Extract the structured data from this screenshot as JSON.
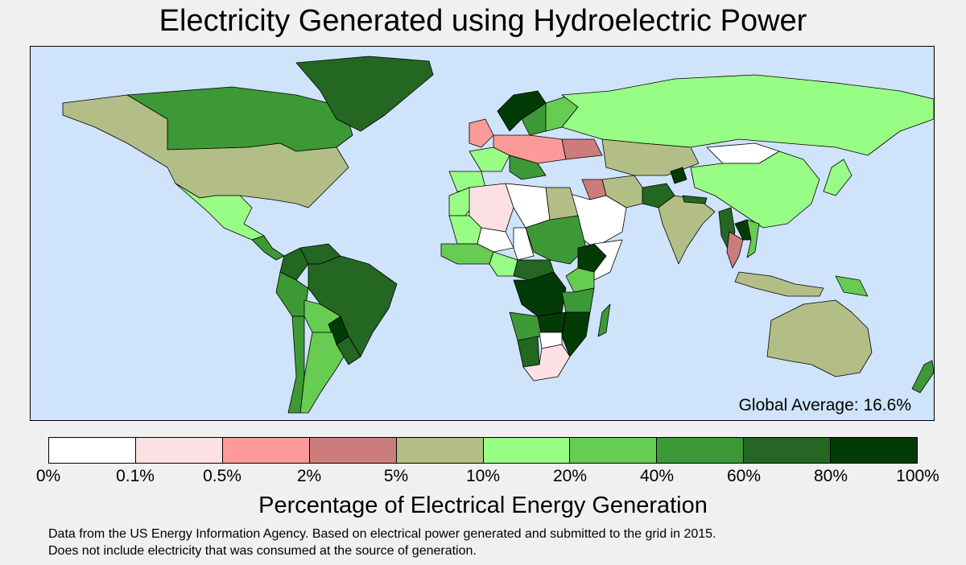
{
  "title": "Electricity Generated using Hydroelectric Power",
  "global_average": "Global Average: 16.6%",
  "legend": {
    "title": "Percentage of Electrical Energy Generation",
    "ticks": [
      "0%",
      "0.1%",
      "0.5%",
      "2%",
      "5%",
      "10%",
      "20%",
      "40%",
      "60%",
      "80%",
      "100%"
    ],
    "colors": [
      "#ffffff",
      "#fde0e3",
      "#fc9a9a",
      "#cd7c7c",
      "#b3be86",
      "#98fd85",
      "#66cc52",
      "#3d9935",
      "#236722",
      "#033b07"
    ]
  },
  "source_lines": [
    "Data from the US Energy Information Agency.  Based on electrical power generated and submitted to the grid in 2015.",
    "Does not include electricity that was consumed at the source of generation."
  ],
  "colors": {
    "ocean": "#cfe4fb",
    "background": "#f0f0f0"
  },
  "regions": [
    {
      "name": "Canada",
      "class": 8
    },
    {
      "name": "Greenland",
      "class": 9
    },
    {
      "name": "United States",
      "class": 5
    },
    {
      "name": "Mexico",
      "class": 6
    },
    {
      "name": "Central America",
      "class": 8
    },
    {
      "name": "Colombia",
      "class": 9
    },
    {
      "name": "Venezuela",
      "class": 9
    },
    {
      "name": "Brazil",
      "class": 9
    },
    {
      "name": "Peru",
      "class": 8
    },
    {
      "name": "Bolivia",
      "class": 7
    },
    {
      "name": "Paraguay",
      "class": 10
    },
    {
      "name": "Argentina",
      "class": 7
    },
    {
      "name": "Chile",
      "class": 8
    },
    {
      "name": "Uruguay",
      "class": 9
    },
    {
      "name": "Norway",
      "class": 10
    },
    {
      "name": "Sweden",
      "class": 8
    },
    {
      "name": "Finland",
      "class": 7
    },
    {
      "name": "United Kingdom",
      "class": 3
    },
    {
      "name": "France",
      "class": 6
    },
    {
      "name": "Spain",
      "class": 6
    },
    {
      "name": "Central Europe",
      "class": 3
    },
    {
      "name": "Balkans",
      "class": 8
    },
    {
      "name": "Ukraine",
      "class": 4
    },
    {
      "name": "Russia",
      "class": 6
    },
    {
      "name": "Kazakhstan",
      "class": 5
    },
    {
      "name": "Mongolia",
      "class": 1
    },
    {
      "name": "China",
      "class": 6
    },
    {
      "name": "Pakistan",
      "class": 9
    },
    {
      "name": "Tajikistan",
      "class": 10
    },
    {
      "name": "India",
      "class": 5
    },
    {
      "name": "Nepal",
      "class": 9
    },
    {
      "name": "Myanmar",
      "class": 9
    },
    {
      "name": "Laos",
      "class": 10
    },
    {
      "name": "Thailand",
      "class": 4
    },
    {
      "name": "Vietnam",
      "class": 7
    },
    {
      "name": "Indonesia",
      "class": 5
    },
    {
      "name": "Papua New Guinea",
      "class": 7
    },
    {
      "name": "Australia",
      "class": 5
    },
    {
      "name": "New Zealand",
      "class": 8
    },
    {
      "name": "Japan",
      "class": 6
    },
    {
      "name": "Iran",
      "class": 5
    },
    {
      "name": "Iraq",
      "class": 4
    },
    {
      "name": "Arabia",
      "class": 1
    },
    {
      "name": "Algeria",
      "class": 2
    },
    {
      "name": "Morocco",
      "class": 6
    },
    {
      "name": "Libya",
      "class": 1
    },
    {
      "name": "Egypt",
      "class": 5
    },
    {
      "name": "Mali",
      "class": 6
    },
    {
      "name": "Niger",
      "class": 1
    },
    {
      "name": "Chad",
      "class": 1
    },
    {
      "name": "Sudan",
      "class": 8
    },
    {
      "name": "Ethiopia",
      "class": 10
    },
    {
      "name": "Somalia",
      "class": 1
    },
    {
      "name": "West Africa",
      "class": 7
    },
    {
      "name": "Nigeria",
      "class": 6
    },
    {
      "name": "Central Africa",
      "class": 9
    },
    {
      "name": "DR Congo",
      "class": 10
    },
    {
      "name": "Kenya",
      "class": 7
    },
    {
      "name": "Tanzania",
      "class": 8
    },
    {
      "name": "Angola",
      "class": 8
    },
    {
      "name": "Zambia",
      "class": 10
    },
    {
      "name": "Mozambique",
      "class": 10
    },
    {
      "name": "Namibia",
      "class": 9
    },
    {
      "name": "Botswana",
      "class": 1
    },
    {
      "name": "South Africa",
      "class": 2
    },
    {
      "name": "Madagascar",
      "class": 8
    }
  ]
}
